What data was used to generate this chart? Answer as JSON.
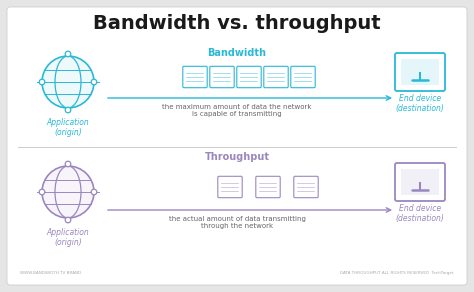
{
  "title": "Bandwidth vs. throughput",
  "bg_outer": "#e5e5e5",
  "bg_inner": "#ffffff",
  "bandwidth_label": "Bandwidth",
  "throughput_label": "Throughput",
  "bw_color": "#29b8d8",
  "tp_color": "#9b87c0",
  "app_label_bw": "Application\n(origin)",
  "end_label_bw": "End device\n(destination)",
  "app_label_tp": "Application\n(origin)",
  "end_label_tp": "End device\n(destination)",
  "bandwidth_text": "the maximum amount of data the network\nis capable of transmitting",
  "throughput_text": "the actual amount of data transmitting\nthrough the network",
  "footer_left": "WWW.BANDWIDTH.TV BRAND",
  "footer_right": "DATA THROUGHPUT ALL RIGHTS RESERVED  TechTarget",
  "title_fontsize": 14,
  "section_fontsize": 7,
  "label_fontsize": 5.5,
  "body_fontsize": 5.0
}
